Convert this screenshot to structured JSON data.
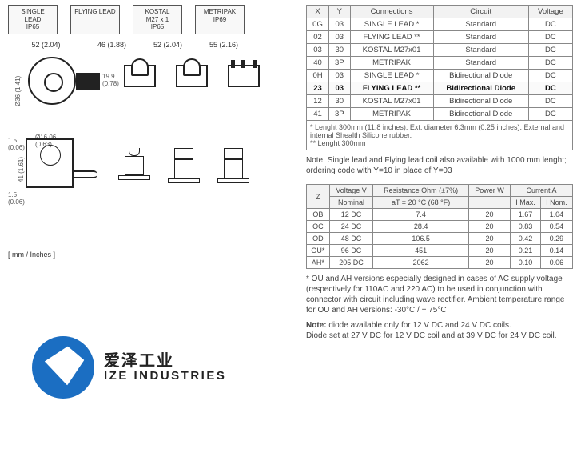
{
  "connectors": {
    "single_lead": {
      "l1": "SINGLE LEAD",
      "l2": "IP65"
    },
    "flying_lead": {
      "l1": "FLYING LEAD",
      "l2": ""
    },
    "kostal": {
      "l1": "KOSTAL",
      "l2": "M27 x 1",
      "l3": "IP65"
    },
    "metripak": {
      "l1": "METRIPAK",
      "l2": "IP69"
    }
  },
  "dimensions": {
    "w1": "52 (2.04)",
    "w2": "46 (1.88)",
    "w3": "52 (2.04)",
    "w4": "55 (2.16)",
    "dia": "Ø36 (1.41)",
    "h_inner": "19.9\n(0.78)",
    "side_h": "41 (1.61)",
    "side_top": "1.5\n(0.06)",
    "side_bot": "1.5\n(0.06)",
    "side_dia": "Ø16.06\n(0.63)"
  },
  "unit_label": "[ mm / Inches ]",
  "logo": {
    "cn": "爱泽工业",
    "en": "IZE INDUSTRIES"
  },
  "table1": {
    "headers": {
      "x": "X",
      "y": "Y",
      "conn": "Connections",
      "circuit": "Circuit",
      "volt": "Voltage"
    },
    "rows": [
      {
        "x": "0G",
        "y": "03",
        "conn": "SINGLE LEAD *",
        "circuit": "Standard",
        "volt": "DC"
      },
      {
        "x": "02",
        "y": "03",
        "conn": "FLYING LEAD **",
        "circuit": "Standard",
        "volt": "DC"
      },
      {
        "x": "03",
        "y": "30",
        "conn": "KOSTAL M27x01",
        "circuit": "Standard",
        "volt": "DC"
      },
      {
        "x": "40",
        "y": "3P",
        "conn": "METRIPAK",
        "circuit": "Standard",
        "volt": "DC"
      },
      {
        "x": "0H",
        "y": "03",
        "conn": "SINGLE LEAD *",
        "circuit": "Bidirectional Diode",
        "volt": "DC"
      },
      {
        "x": "23",
        "y": "03",
        "conn": "FLYING LEAD **",
        "circuit": "Bidirectional Diode",
        "volt": "DC",
        "hl": true
      },
      {
        "x": "12",
        "y": "30",
        "conn": "KOSTAL M27x01",
        "circuit": "Bidirectional Diode",
        "volt": "DC"
      },
      {
        "x": "41",
        "y": "3P",
        "conn": "METRIPAK",
        "circuit": "Bidirectional Diode",
        "volt": "DC"
      }
    ],
    "footnote": "* Lenght 300mm (11.8 inches). Ext. diameter 6.3mm (0.25 inches). External and internal Shealth Silicone rubber.\n** Lenght 300mm"
  },
  "note1": "Note: Single lead and Flying lead coil also available with 1000 mm lenght; ordering code with Y=10 in place of Y=03",
  "table2": {
    "headers": {
      "z": "Z",
      "volt": "Voltage V",
      "res": "Resistance Ohm (±7%)",
      "pow": "Power W",
      "cur": "Current A",
      "nom": "Nominal",
      "at": "aT = 20 °C (68 °F)",
      "imax": "I Max.",
      "inom": "I Nom."
    },
    "rows": [
      {
        "z": "OB",
        "v": "12 DC",
        "r": "7.4",
        "p": "20",
        "imax": "1.67",
        "inom": "1.04"
      },
      {
        "z": "OC",
        "v": "24 DC",
        "r": "28.4",
        "p": "20",
        "imax": "0.83",
        "inom": "0.54"
      },
      {
        "z": "OD",
        "v": "48 DC",
        "r": "106.5",
        "p": "20",
        "imax": "0.42",
        "inom": "0.29"
      },
      {
        "z": "OU*",
        "v": "96 DC",
        "r": "451",
        "p": "20",
        "imax": "0.21",
        "inom": "0.14"
      },
      {
        "z": "AH*",
        "v": "205 DC",
        "r": "2062",
        "p": "20",
        "imax": "0.10",
        "inom": "0.06"
      }
    ]
  },
  "note2": "* OU and AH versions especially designed in cases of AC supply voltage (respectively for 110AC and 220 AC) to be used in conjunction with connector with circuit including wave rectifier. Ambient temperature range for OU and AH versions: -30°C / + 75°C",
  "note3_label": "Note:",
  "note3": " diode available only for 12 V DC and 24 V DC coils.\nDiode set at 27 V DC for 12 V DC coil and at 39 V DC for 24 V DC coil."
}
